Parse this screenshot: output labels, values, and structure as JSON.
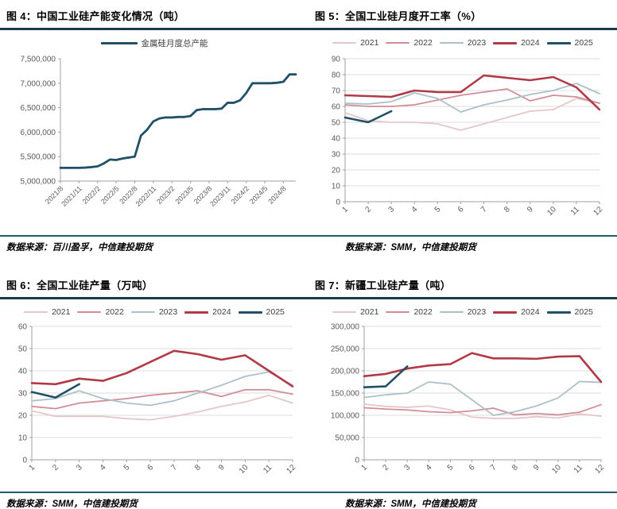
{
  "figures": [
    {
      "title": "图 4：中国工业硅产能变化情况（吨）",
      "source": "数据来源：百川盈孚，中信建投期货"
    },
    {
      "title": "图 5：全国工业硅月度开工率（%）",
      "source": "数据来源：SMM，中信建投期货"
    },
    {
      "title": "图 6：全国工业硅产量（万吨）",
      "source": "数据来源：SMM，中信建投期货"
    },
    {
      "title": "图 7：新疆工业硅产量（吨）",
      "source": "数据来源：SMM，中信建投期货"
    }
  ],
  "colors": {
    "title_rule": "#1c3a4e",
    "source_rule": "#1f5f6b",
    "grid": "#dcdcdc",
    "axis": "#a0a0a0",
    "tick_text": "#595959",
    "legend_text": "#404040",
    "series_2021": "#e5c6cb",
    "series_2022": "#d18e98",
    "series_2023": "#adc0c9",
    "series_2024": "#b13a48",
    "series_2025": "#215067"
  },
  "chart_data": [
    {
      "type": "line",
      "title": "中国工业硅产能变化情况（吨）",
      "ylim": [
        5000000,
        7500000
      ],
      "ytick_step": 500000,
      "ytick_format": "thousands",
      "grid": false,
      "legend_position": "top",
      "xtick_every": 3,
      "x": [
        "2021/8",
        "2021/9",
        "2021/10",
        "2021/11",
        "2021/12",
        "2022/1",
        "2022/2",
        "2022/3",
        "2022/4",
        "2022/5",
        "2022/6",
        "2022/7",
        "2022/8",
        "2022/9",
        "2022/10",
        "2022/11",
        "2022/12",
        "2023/1",
        "2023/2",
        "2023/3",
        "2023/4",
        "2023/5",
        "2023/6",
        "2023/7",
        "2023/8",
        "2023/9",
        "2023/10",
        "2023/11",
        "2023/12",
        "2024/1",
        "2024/2",
        "2024/3",
        "2024/4",
        "2024/5",
        "2024/6",
        "2024/7",
        "2024/8",
        "2024/9",
        "2024/10"
      ],
      "series": [
        {
          "name": "金属硅月度总产能",
          "color": "#215067",
          "line_width": 2.8,
          "values": [
            5270000,
            5270000,
            5270000,
            5270000,
            5275000,
            5285000,
            5300000,
            5360000,
            5440000,
            5430000,
            5460000,
            5480000,
            5500000,
            5930000,
            6050000,
            6220000,
            6280000,
            6300000,
            6300000,
            6310000,
            6310000,
            6330000,
            6450000,
            6470000,
            6470000,
            6470000,
            6480000,
            6600000,
            6600000,
            6650000,
            6800000,
            7000000,
            7000000,
            7000000,
            7000000,
            7010000,
            7030000,
            7180000,
            7180000
          ]
        }
      ]
    },
    {
      "type": "line",
      "title": "全国工业硅月度开工率（%）",
      "ylim": [
        0,
        90
      ],
      "ytick_step": 10,
      "ytick_format": "plain",
      "grid": true,
      "legend_position": "top",
      "x": [
        "1",
        "2",
        "3",
        "4",
        "5",
        "6",
        "7",
        "8",
        "9",
        "10",
        "11",
        "12"
      ],
      "series": [
        {
          "name": "2021",
          "color": "#e5c6cb",
          "line_width": 1.8,
          "values": [
            56,
            51,
            50,
            50,
            49,
            45,
            49,
            53,
            57,
            58,
            65,
            62
          ]
        },
        {
          "name": "2022",
          "color": "#d18e98",
          "line_width": 1.8,
          "values": [
            61,
            60,
            60,
            61,
            64,
            67,
            69,
            71,
            63.5,
            67,
            66,
            62
          ]
        },
        {
          "name": "2023",
          "color": "#adc0c9",
          "line_width": 1.8,
          "values": [
            62,
            61.5,
            63,
            68.5,
            65,
            56.5,
            61,
            64,
            67.5,
            70,
            74.5,
            68
          ]
        },
        {
          "name": "2024",
          "color": "#b13a48",
          "line_width": 2.6,
          "values": [
            67,
            66.5,
            66,
            70,
            69,
            69,
            79.5,
            78,
            76.5,
            78.5,
            72,
            58
          ]
        },
        {
          "name": "2025",
          "color": "#215067",
          "line_width": 2.6,
          "values": [
            53,
            50,
            57
          ]
        }
      ]
    },
    {
      "type": "line",
      "title": "全国工业硅产量（万吨）",
      "ylim": [
        0,
        60
      ],
      "ytick_step": 10,
      "ytick_format": "plain",
      "grid": true,
      "legend_position": "top",
      "x": [
        "1",
        "2",
        "3",
        "4",
        "5",
        "6",
        "7",
        "8",
        "9",
        "10",
        "11",
        "12"
      ],
      "series": [
        {
          "name": "2021",
          "color": "#e5c6cb",
          "line_width": 1.8,
          "values": [
            22,
            19.5,
            19.5,
            19.5,
            18.5,
            18,
            19.5,
            21.5,
            24,
            26,
            29,
            25.5
          ]
        },
        {
          "name": "2022",
          "color": "#d18e98",
          "line_width": 1.8,
          "values": [
            24,
            23,
            25.5,
            26.5,
            27.5,
            29,
            30,
            31,
            28.5,
            31.5,
            31.5,
            29.5
          ]
        },
        {
          "name": "2023",
          "color": "#adc0c9",
          "line_width": 1.8,
          "values": [
            26.5,
            27.5,
            31,
            27.5,
            25.5,
            24.5,
            26.5,
            30,
            33.5,
            37.5,
            39.5,
            33.5
          ]
        },
        {
          "name": "2024",
          "color": "#b13a48",
          "line_width": 2.6,
          "values": [
            34.5,
            34,
            36.5,
            35.5,
            39,
            44,
            49,
            47.5,
            45,
            47,
            40,
            33
          ]
        },
        {
          "name": "2025",
          "color": "#215067",
          "line_width": 2.6,
          "values": [
            30.5,
            28,
            34
          ]
        }
      ]
    },
    {
      "type": "line",
      "title": "新疆工业硅产量（吨）",
      "ylim": [
        0,
        300000
      ],
      "ytick_step": 50000,
      "ytick_format": "thousands",
      "grid": true,
      "legend_position": "top",
      "x": [
        "1",
        "2",
        "3",
        "4",
        "5",
        "6",
        "7",
        "8",
        "9",
        "10",
        "11",
        "12"
      ],
      "series": [
        {
          "name": "2021",
          "color": "#e5c6cb",
          "line_width": 1.8,
          "values": [
            125000,
            120000,
            118000,
            121000,
            112000,
            96000,
            93000,
            93000,
            97000,
            94000,
            103000,
            98000
          ]
        },
        {
          "name": "2022",
          "color": "#d18e98",
          "line_width": 1.8,
          "values": [
            117000,
            114000,
            112000,
            108000,
            106000,
            110000,
            116000,
            101000,
            104000,
            101000,
            107000,
            124000
          ]
        },
        {
          "name": "2023",
          "color": "#adc0c9",
          "line_width": 1.8,
          "values": [
            140000,
            146000,
            150000,
            175000,
            170000,
            135000,
            100000,
            108000,
            121000,
            139000,
            176000,
            174000
          ]
        },
        {
          "name": "2024",
          "color": "#b13a48",
          "line_width": 2.6,
          "values": [
            188000,
            193000,
            205000,
            212000,
            215000,
            240000,
            228000,
            228000,
            227000,
            232000,
            233000,
            175000
          ]
        },
        {
          "name": "2025",
          "color": "#215067",
          "line_width": 2.6,
          "values": [
            163000,
            165000,
            210000
          ]
        }
      ]
    }
  ]
}
